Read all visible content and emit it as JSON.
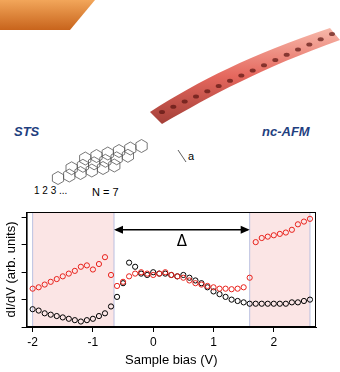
{
  "chart_data": {
    "type": "scatter",
    "x_label": "Sample bias (V)",
    "y_label": "dI/dV (arb. units)",
    "annotations": {
      "left": "STS",
      "right": "nc-AFM",
      "rows": "1 2 3 ...",
      "width": "N = 7",
      "period": "a"
    },
    "x": [
      -2.0,
      -1.9,
      -1.8,
      -1.7,
      -1.6,
      -1.5,
      -1.4,
      -1.3,
      -1.2,
      -1.1,
      -1.0,
      -0.9,
      -0.8,
      -0.7,
      -0.6,
      -0.5,
      -0.4,
      -0.3,
      -0.2,
      -0.1,
      0.0,
      0.1,
      0.2,
      0.3,
      0.4,
      0.5,
      0.6,
      0.7,
      0.8,
      0.9,
      1.0,
      1.1,
      1.2,
      1.3,
      1.4,
      1.5,
      1.6,
      1.7,
      1.8,
      1.9,
      2.0,
      2.1,
      2.2,
      2.3,
      2.4,
      2.5,
      2.6
    ],
    "series": [
      {
        "color": "#e8211b",
        "marker": "circle-open",
        "values": [
          1.4,
          1.45,
          1.55,
          1.65,
          1.75,
          1.85,
          1.95,
          2.05,
          2.2,
          2.25,
          2.1,
          2.3,
          2.55,
          1.9,
          1.5,
          1.65,
          1.85,
          1.95,
          2.0,
          1.95,
          1.9,
          1.95,
          2.0,
          1.9,
          1.85,
          1.8,
          1.7,
          1.6,
          1.55,
          1.5,
          1.45,
          1.4,
          1.4,
          1.38,
          1.4,
          1.45,
          1.8,
          3.1,
          3.25,
          3.3,
          3.35,
          3.4,
          3.45,
          3.55,
          3.75,
          3.85,
          3.95
        ]
      },
      {
        "color": "#000000",
        "marker": "circle-open",
        "values": [
          0.65,
          0.6,
          0.5,
          0.45,
          0.4,
          0.35,
          0.3,
          0.25,
          0.2,
          0.25,
          0.3,
          0.4,
          0.5,
          0.75,
          1.1,
          1.6,
          2.35,
          2.2,
          1.95,
          1.9,
          2.0,
          1.95,
          1.95,
          1.9,
          1.85,
          1.9,
          1.8,
          1.7,
          1.6,
          1.45,
          1.3,
          1.2,
          1.1,
          1.0,
          0.95,
          0.9,
          0.85,
          0.85,
          0.85,
          0.85,
          0.85,
          0.85,
          0.85,
          0.9,
          0.9,
          0.95,
          1.0
        ]
      }
    ],
    "shaded": [
      [
        -2.0,
        -0.65
      ],
      [
        1.6,
        2.6
      ]
    ],
    "gap": {
      "label": "Δ",
      "x": [
        -0.65,
        1.6
      ],
      "y": 3.55
    },
    "xlim": [
      -2.1,
      2.7
    ],
    "xticks": [
      -2,
      -1,
      0,
      1,
      2
    ],
    "ylim": [
      0,
      4.2
    ],
    "yticks": [
      0,
      1,
      2,
      3,
      4
    ],
    "grid": false,
    "tick_labels": "x"
  }
}
